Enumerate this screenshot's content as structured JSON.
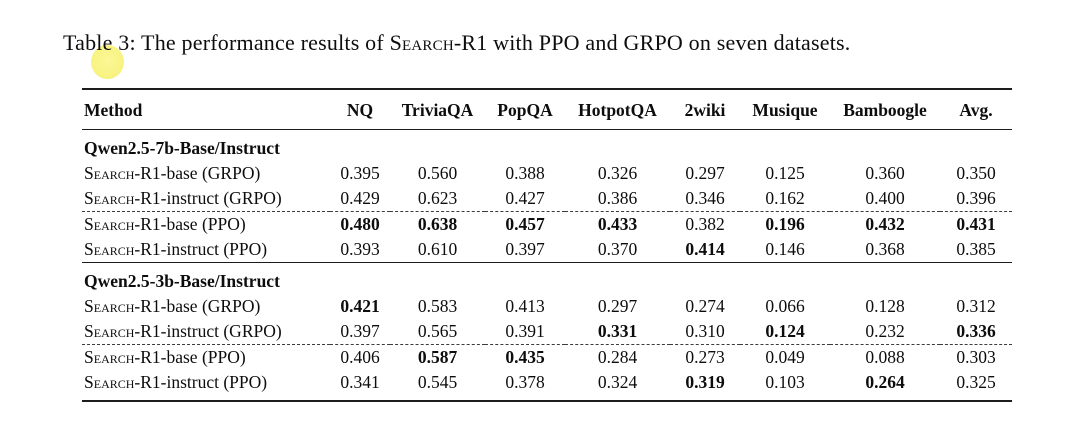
{
  "caption": {
    "prefix": "Table 3: The performance results of ",
    "method_name": "Search-R1",
    "suffix": " with PPO and GRPO on seven datasets."
  },
  "highlight": {
    "type": "click-highlight-circle",
    "color": "#f6ef6b"
  },
  "table": {
    "columns": [
      "Method",
      "NQ",
      "TriviaQA",
      "PopQA",
      "HotpotQA",
      "2wiki",
      "Musique",
      "Bamboogle",
      "Avg."
    ],
    "groups": [
      {
        "title": "Qwen2.5-7b-Base/Instruct",
        "rows": [
          {
            "method_sc": "Search",
            "method_rest": "-R1-base (GRPO)",
            "values": [
              "0.395",
              "0.560",
              "0.388",
              "0.326",
              "0.297",
              "0.125",
              "0.360",
              "0.350"
            ],
            "bold": [
              false,
              false,
              false,
              false,
              false,
              false,
              false,
              false
            ],
            "dashed_above": false
          },
          {
            "method_sc": "Search",
            "method_rest": "-R1-instruct (GRPO)",
            "values": [
              "0.429",
              "0.623",
              "0.427",
              "0.386",
              "0.346",
              "0.162",
              "0.400",
              "0.396"
            ],
            "bold": [
              false,
              false,
              false,
              false,
              false,
              false,
              false,
              false
            ],
            "dashed_above": false
          },
          {
            "method_sc": "Search",
            "method_rest": "-R1-base (PPO)",
            "values": [
              "0.480",
              "0.638",
              "0.457",
              "0.433",
              "0.382",
              "0.196",
              "0.432",
              "0.431"
            ],
            "bold": [
              true,
              true,
              true,
              true,
              false,
              true,
              true,
              true
            ],
            "dashed_above": true
          },
          {
            "method_sc": "Search",
            "method_rest": "-R1-instruct (PPO)",
            "values": [
              "0.393",
              "0.610",
              "0.397",
              "0.370",
              "0.414",
              "0.146",
              "0.368",
              "0.385"
            ],
            "bold": [
              false,
              false,
              false,
              false,
              true,
              false,
              false,
              false
            ],
            "dashed_above": false
          }
        ]
      },
      {
        "title": "Qwen2.5-3b-Base/Instruct",
        "rows": [
          {
            "method_sc": "Search",
            "method_rest": "-R1-base (GRPO)",
            "values": [
              "0.421",
              "0.583",
              "0.413",
              "0.297",
              "0.274",
              "0.066",
              "0.128",
              "0.312"
            ],
            "bold": [
              true,
              false,
              false,
              false,
              false,
              false,
              false,
              false
            ],
            "dashed_above": false
          },
          {
            "method_sc": "Search",
            "method_rest": "-R1-instruct (GRPO)",
            "values": [
              "0.397",
              "0.565",
              "0.391",
              "0.331",
              "0.310",
              "0.124",
              "0.232",
              "0.336"
            ],
            "bold": [
              false,
              false,
              false,
              true,
              false,
              true,
              false,
              true
            ],
            "dashed_above": false
          },
          {
            "method_sc": "Search",
            "method_rest": "-R1-base (PPO)",
            "values": [
              "0.406",
              "0.587",
              "0.435",
              "0.284",
              "0.273",
              "0.049",
              "0.088",
              "0.303"
            ],
            "bold": [
              false,
              true,
              true,
              false,
              false,
              false,
              false,
              false
            ],
            "dashed_above": true
          },
          {
            "method_sc": "Search",
            "method_rest": "-R1-instruct (PPO)",
            "values": [
              "0.341",
              "0.545",
              "0.378",
              "0.324",
              "0.319",
              "0.103",
              "0.264",
              "0.325"
            ],
            "bold": [
              false,
              false,
              false,
              false,
              true,
              false,
              true,
              false
            ],
            "dashed_above": false
          }
        ]
      }
    ]
  }
}
